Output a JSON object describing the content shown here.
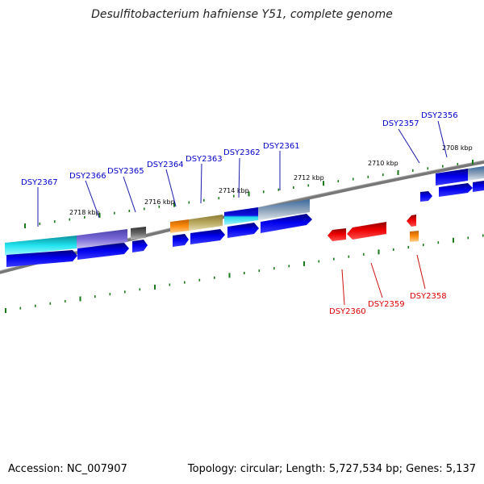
{
  "title": "Desulfitobacterium hafniense Y51, complete genome",
  "footer": {
    "accession": "Accession: NC_007907",
    "summary": "Topology: circular; Length: 5,727,534 bp; Genes: 5,137"
  },
  "colors": {
    "backbone": "#777777",
    "ticks": "#1a7a1a",
    "plus_label": "#0000cc",
    "minus_label": "#dd0000",
    "forward_cds": "#0000dd",
    "reverse_cds": "#ee0000"
  },
  "axis_labels": [
    "2708 kbp",
    "2710 kbp",
    "2712 kbp",
    "2714 kbp",
    "2716 kbp",
    "2718 kbp"
  ],
  "genes_plus": [
    "DSY2356",
    "DSY2357",
    "DSY2361",
    "DSY2362",
    "DSY2363",
    "DSY2364",
    "DSY2365",
    "DSY2366",
    "DSY2367"
  ],
  "genes_minus": [
    "DSY2358",
    "DSY2359",
    "DSY2360"
  ]
}
